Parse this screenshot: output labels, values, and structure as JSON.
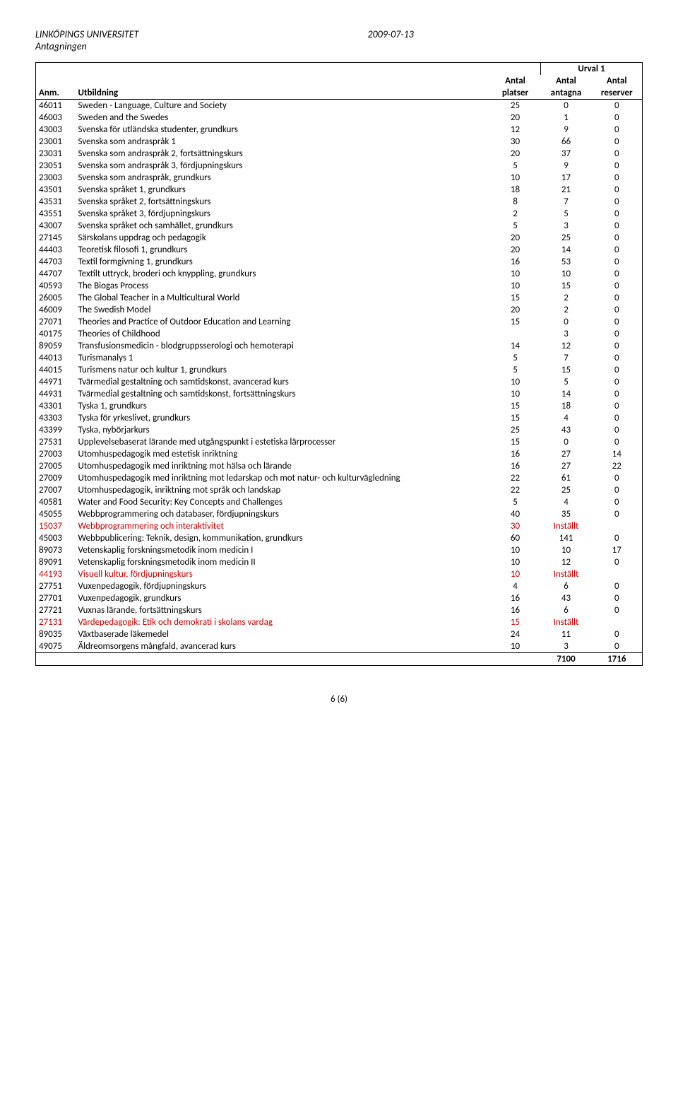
{
  "header": {
    "institution": "LINKÖPINGS UNIVERSITET",
    "dept": "Antagningen",
    "date": "2009-07-13"
  },
  "tableHead": {
    "urval": "Urval 1",
    "antal": "Antal",
    "anm": "Anm.",
    "utbildning": "Utbildning",
    "platser": "platser",
    "antagna": "antagna",
    "reserver": "reserver"
  },
  "totals": {
    "antagna": "7100",
    "reserver": "1716"
  },
  "footer": "6 (6)",
  "rows": [
    {
      "code": "46011",
      "name": "Sweden - Language, Culture and Society",
      "p": "25",
      "a": "0",
      "r": "0"
    },
    {
      "code": "46003",
      "name": "Sweden and the Swedes",
      "p": "20",
      "a": "1",
      "r": "0"
    },
    {
      "code": "43003",
      "name": "Svenska för utländska studenter, grundkurs",
      "p": "12",
      "a": "9",
      "r": "0"
    },
    {
      "code": "23001",
      "name": "Svenska som andraspråk 1",
      "p": "30",
      "a": "66",
      "r": "0"
    },
    {
      "code": "23031",
      "name": "Svenska som andraspråk 2, fortsättningskurs",
      "p": "20",
      "a": "37",
      "r": "0"
    },
    {
      "code": "23051",
      "name": "Svenska som andraspråk 3, fördjupningskurs",
      "p": "5",
      "a": "9",
      "r": "0"
    },
    {
      "code": "23003",
      "name": "Svenska som andraspråk, grundkurs",
      "p": "10",
      "a": "17",
      "r": "0"
    },
    {
      "code": "43501",
      "name": "Svenska språket 1, grundkurs",
      "p": "18",
      "a": "21",
      "r": "0"
    },
    {
      "code": "43531",
      "name": "Svenska språket 2, fortsättningskurs",
      "p": "8",
      "a": "7",
      "r": "0"
    },
    {
      "code": "43551",
      "name": "Svenska språket 3, fördjupningskurs",
      "p": "2",
      "a": "5",
      "r": "0"
    },
    {
      "code": "43007",
      "name": "Svenska språket och samhället, grundkurs",
      "p": "5",
      "a": "3",
      "r": "0"
    },
    {
      "code": "27145",
      "name": "Särskolans uppdrag och pedagogik",
      "p": "20",
      "a": "25",
      "r": "0"
    },
    {
      "code": "44403",
      "name": "Teoretisk filosofi 1, grundkurs",
      "p": "20",
      "a": "14",
      "r": "0"
    },
    {
      "code": "44703",
      "name": "Textil formgivning 1, grundkurs",
      "p": "16",
      "a": "53",
      "r": "0"
    },
    {
      "code": "44707",
      "name": "Textilt uttryck, broderi och knyppling, grundkurs",
      "p": "10",
      "a": "10",
      "r": "0"
    },
    {
      "code": "40593",
      "name": "The Biogas Process",
      "p": "10",
      "a": "15",
      "r": "0"
    },
    {
      "code": "26005",
      "name": "The Global Teacher in a Multicultural World",
      "p": "15",
      "a": "2",
      "r": "0"
    },
    {
      "code": "46009",
      "name": "The Swedish Model",
      "p": "20",
      "a": "2",
      "r": "0"
    },
    {
      "code": "27071",
      "name": "Theories and Practice of Outdoor Education and Learning",
      "p": "15",
      "a": "0",
      "r": "0"
    },
    {
      "code": "40175",
      "name": "Theories of Childhood",
      "p": "",
      "a": "3",
      "r": "0"
    },
    {
      "code": "89059",
      "name": "Transfusionsmedicin - blodgruppsserologi och hemoterapi",
      "p": "14",
      "a": "12",
      "r": "0"
    },
    {
      "code": "44013",
      "name": "Turismanalys 1",
      "p": "5",
      "a": "7",
      "r": "0"
    },
    {
      "code": "44015",
      "name": "Turismens natur och kultur 1, grundkurs",
      "p": "5",
      "a": "15",
      "r": "0"
    },
    {
      "code": "44971",
      "name": "Tvärmedial gestaltning och samtidskonst, avancerad kurs",
      "p": "10",
      "a": "5",
      "r": "0"
    },
    {
      "code": "44931",
      "name": "Tvärmedial gestaltning och samtidskonst, fortsättningskurs",
      "p": "10",
      "a": "14",
      "r": "0"
    },
    {
      "code": "43301",
      "name": "Tyska 1, grundkurs",
      "p": "15",
      "a": "18",
      "r": "0"
    },
    {
      "code": "43303",
      "name": "Tyska för yrkeslivet, grundkurs",
      "p": "15",
      "a": "4",
      "r": "0"
    },
    {
      "code": "43399",
      "name": "Tyska, nybörjarkurs",
      "p": "25",
      "a": "43",
      "r": "0"
    },
    {
      "code": "27531",
      "name": "Upplevelsebaserat lärande med utgångspunkt i estetiska lärprocesser",
      "p": "15",
      "a": "0",
      "r": "0",
      "twoLine": true
    },
    {
      "code": "27003",
      "name": "Utomhuspedagogik med estetisk inriktning",
      "p": "16",
      "a": "27",
      "r": "14"
    },
    {
      "code": "27005",
      "name": "Utomhuspedagogik med inriktning mot hälsa och lärande",
      "p": "16",
      "a": "27",
      "r": "22"
    },
    {
      "code": "27009",
      "name": "Utomhuspedagogik med inriktning mot ledarskap och mot natur- och kulturvägledning",
      "p": "22",
      "a": "61",
      "r": "0",
      "twoLine": true
    },
    {
      "code": "27007",
      "name": "Utomhuspedagogik, inriktning mot språk och landskap",
      "p": "22",
      "a": "25",
      "r": "0"
    },
    {
      "code": "40581",
      "name": "Water and Food Security: Key Concepts and Challenges",
      "p": "5",
      "a": "4",
      "r": "0"
    },
    {
      "code": "45055",
      "name": "Webbprogrammering och databaser, fördjupningskurs",
      "p": "40",
      "a": "35",
      "r": "0"
    },
    {
      "code": "15037",
      "name": "Webbprogrammering och interaktivitet",
      "p": "30",
      "a": "Inställt",
      "r": "",
      "cancel": true
    },
    {
      "code": "45003",
      "name": "Webbpublicering: Teknik, design, kommunikation, grundkurs",
      "p": "60",
      "a": "141",
      "r": "0"
    },
    {
      "code": "89073",
      "name": "Vetenskaplig forskningsmetodik inom medicin I",
      "p": "10",
      "a": "10",
      "r": "17"
    },
    {
      "code": "89091",
      "name": "Vetenskaplig forskningsmetodik inom medicin II",
      "p": "10",
      "a": "12",
      "r": "0"
    },
    {
      "code": "44193",
      "name": "Visuell kultur, fördjupningskurs",
      "p": "10",
      "a": "Inställt",
      "r": "",
      "cancel": true
    },
    {
      "code": "27751",
      "name": "Vuxenpedagogik, fördjupningskurs",
      "p": "4",
      "a": "6",
      "r": "0"
    },
    {
      "code": "27701",
      "name": "Vuxenpedagogik, grundkurs",
      "p": "16",
      "a": "43",
      "r": "0"
    },
    {
      "code": "27721",
      "name": "Vuxnas lärande, fortsättningskurs",
      "p": "16",
      "a": "6",
      "r": "0"
    },
    {
      "code": "27131",
      "name": "Värdepedagogik: Etik och demokrati i skolans vardag",
      "p": "15",
      "a": "Inställt",
      "r": "",
      "cancel": true
    },
    {
      "code": "89035",
      "name": "Växtbaserade läkemedel",
      "p": "24",
      "a": "11",
      "r": "0"
    },
    {
      "code": "49075",
      "name": "Äldreomsorgens mångfald, avancerad kurs",
      "p": "10",
      "a": "3",
      "r": "0"
    }
  ]
}
